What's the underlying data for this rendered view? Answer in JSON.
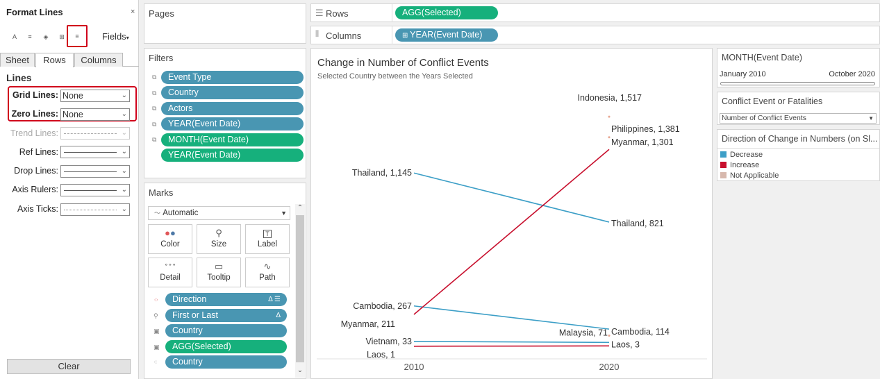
{
  "format_panel": {
    "title": "Format Lines",
    "close": "×",
    "fields_label": "Fields",
    "tools": [
      {
        "name": "font-format-icon",
        "glyph": "A"
      },
      {
        "name": "alignment-format-icon",
        "glyph": "≡"
      },
      {
        "name": "shading-format-icon",
        "glyph": "◈"
      },
      {
        "name": "borders-format-icon",
        "glyph": "⊞"
      },
      {
        "name": "lines-format-icon",
        "glyph": "≡"
      }
    ],
    "tabs": [
      "Sheet",
      "Rows",
      "Columns"
    ],
    "active_tab": "Rows",
    "section": "Lines",
    "rows": [
      {
        "label": "Grid Lines:",
        "value": "None"
      },
      {
        "label": "Zero Lines:",
        "value": "None"
      },
      {
        "label": "Trend Lines:",
        "value": ""
      },
      {
        "label": "Ref Lines:",
        "value": ""
      },
      {
        "label": "Drop Lines:",
        "value": ""
      },
      {
        "label": "Axis Rulers:",
        "value": ""
      },
      {
        "label": "Axis Ticks:",
        "value": ""
      }
    ],
    "clear_label": "Clear"
  },
  "pages": {
    "title": "Pages"
  },
  "filters": {
    "title": "Filters",
    "items": [
      "Event Type",
      "Country",
      "Actors",
      "YEAR(Event Date)",
      "MONTH(Event Date)",
      "YEAR(Event Date)"
    ]
  },
  "marks": {
    "title": "Marks",
    "type": "Automatic",
    "buttons": [
      "Color",
      "Size",
      "Label",
      "Detail",
      "Tooltip",
      "Path"
    ],
    "fields": [
      {
        "label": "Direction",
        "suffix": "Δ ☰"
      },
      {
        "label": "First or Last",
        "suffix": "Δ"
      },
      {
        "label": "Country",
        "suffix": ""
      },
      {
        "label": "AGG(Selected)",
        "suffix": ""
      },
      {
        "label": "Country",
        "suffix": ""
      }
    ]
  },
  "rows_shelf": {
    "label": "Rows",
    "pill": "AGG(Selected)"
  },
  "columns_shelf": {
    "label": "Columns",
    "pill": "YEAR(Event Date)"
  },
  "chart": {
    "title": "Change in Number of Conflict Events",
    "subtitle": "Selected Country between the Years Selected"
  },
  "chart_data": {
    "type": "line",
    "x": [
      2010,
      2020
    ],
    "series": [
      {
        "name": "Thailand",
        "values": [
          1145,
          821
        ],
        "direction": "Decrease"
      },
      {
        "name": "Cambodia",
        "values": [
          267,
          114
        ],
        "direction": "Decrease"
      },
      {
        "name": "Vietnam",
        "values": [
          33,
          null
        ],
        "direction": "Decrease"
      },
      {
        "name": "Myanmar",
        "values": [
          211,
          1301
        ],
        "direction": "Increase"
      },
      {
        "name": "Laos",
        "values": [
          1,
          3
        ],
        "direction": "Increase"
      },
      {
        "name": "Indonesia",
        "values": [
          null,
          1517
        ],
        "direction": "Not Applicable"
      },
      {
        "name": "Philippines",
        "values": [
          null,
          1381
        ],
        "direction": "Not Applicable"
      },
      {
        "name": "Malaysia",
        "values": [
          null,
          71
        ],
        "direction": "Not Applicable"
      }
    ],
    "labels": [
      {
        "text": "Thailand, 1,145",
        "x": 2010,
        "y": 1145
      },
      {
        "text": "Cambodia, 267",
        "x": 2010,
        "y": 267
      },
      {
        "text": "Myanmar, 211",
        "x": 2010,
        "y": 211
      },
      {
        "text": "Vietnam, 33",
        "x": 2010,
        "y": 33
      },
      {
        "text": "Laos, 1",
        "x": 2010,
        "y": 1
      },
      {
        "text": "Indonesia, 1,517",
        "x": 2020,
        "y": 1517
      },
      {
        "text": "Philippines, 1,381",
        "x": 2020,
        "y": 1381
      },
      {
        "text": "Myanmar, 1,301",
        "x": 2020,
        "y": 1301
      },
      {
        "text": "Thailand, 821",
        "x": 2020,
        "y": 821
      },
      {
        "text": "Cambodia, 114",
        "x": 2020,
        "y": 114
      },
      {
        "text": "Malaysia, 71",
        "x": 2020,
        "y": 71
      },
      {
        "text": "Laos, 3",
        "x": 2020,
        "y": 3
      }
    ],
    "xticks": [
      "2010",
      "2020"
    ],
    "ylim": [
      0,
      1600
    ],
    "grid": false,
    "colors": {
      "Decrease": "#3d9fc7",
      "Increase": "#c8102e",
      "Not Applicable": "#e8a792"
    }
  },
  "month_filter": {
    "title": "MONTH(Event Date)",
    "start": "January 2010",
    "end": "October 2020"
  },
  "param": {
    "title": "Conflict Event or Fatalities",
    "value": "Number of Conflict Events"
  },
  "legend": {
    "title": "Direction of Change in Numbers (on Sl...",
    "items": [
      {
        "label": "Decrease",
        "color": "#3d9fc7"
      },
      {
        "label": "Increase",
        "color": "#c8102e"
      },
      {
        "label": "Not Applicable",
        "color": "#d7b8ad"
      }
    ]
  }
}
